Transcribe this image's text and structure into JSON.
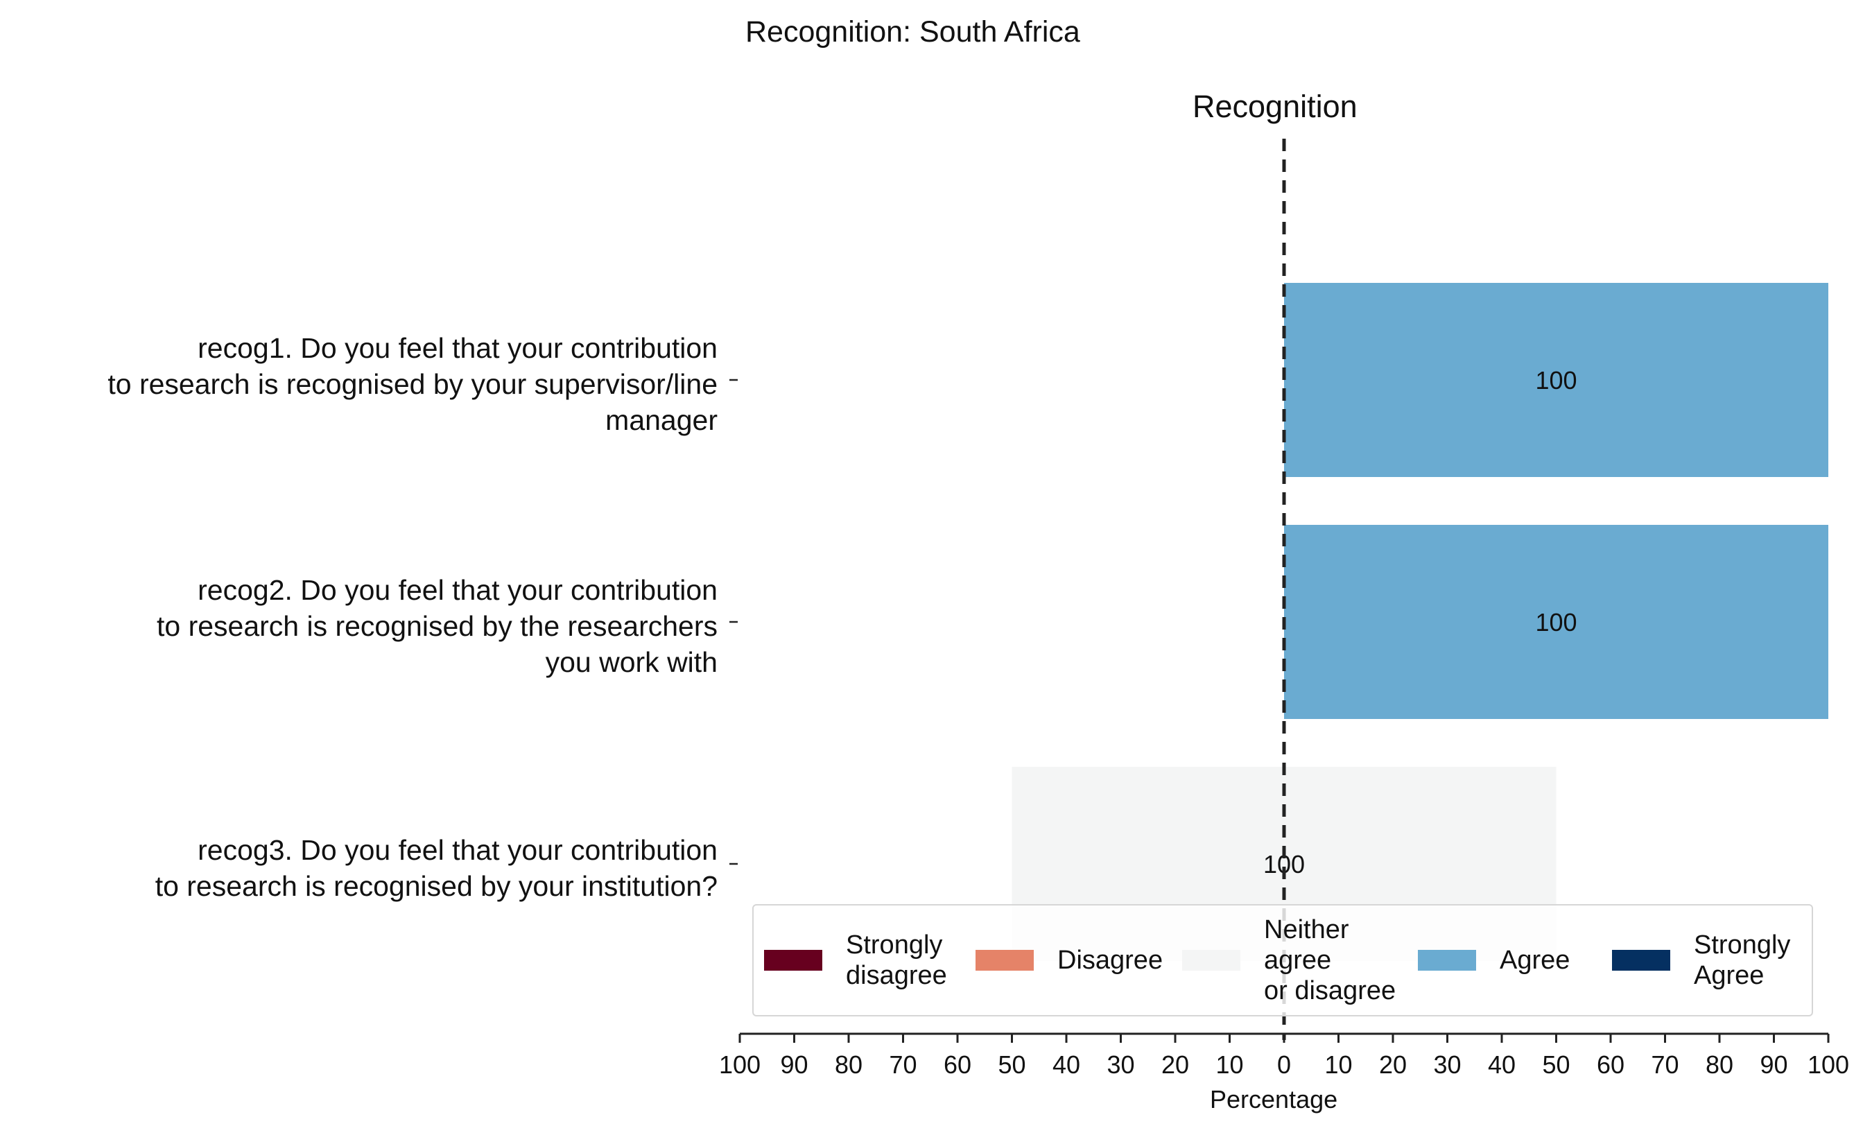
{
  "title": "Recognition: South Africa",
  "subtitle": "Recognition",
  "chart_data": {
    "type": "bar",
    "orientation": "horizontal",
    "stacking": "diverging",
    "title": "Recognition: South Africa",
    "subtitle": "Recognition",
    "xlabel": "Percentage",
    "xlim": [
      -100,
      100
    ],
    "x_ticks": [
      -100,
      -90,
      -80,
      -70,
      -60,
      -50,
      -40,
      -30,
      -20,
      -10,
      0,
      10,
      20,
      30,
      40,
      50,
      60,
      70,
      80,
      90,
      100
    ],
    "x_tick_labels": [
      "100",
      "90",
      "80",
      "70",
      "60",
      "50",
      "40",
      "30",
      "20",
      "10",
      "0",
      "10",
      "20",
      "30",
      "40",
      "50",
      "60",
      "70",
      "80",
      "90",
      "100"
    ],
    "center_line": 0,
    "grid": false,
    "legend_position": "bottom-right",
    "categories": [
      "recog1. Do you feel that your contribution\nto research is recognised by your supervisor/line\nmanager",
      "recog2. Do you feel that your contribution\nto research is recognised by the researchers\nyou work with",
      "recog3. Do you feel that your contribution\nto research is recognised by your institution?"
    ],
    "series": [
      {
        "name": "Strongly\ndisagree",
        "color": "#67001f",
        "values": [
          0,
          0,
          0
        ]
      },
      {
        "name": "Disagree",
        "color": "#e58368",
        "values": [
          0,
          0,
          0
        ]
      },
      {
        "name": "Neither\nagree\nor disagree",
        "color": "#f4f5f5",
        "values": [
          0,
          0,
          100
        ]
      },
      {
        "name": "Agree",
        "color": "#6aabd1",
        "values": [
          100,
          100,
          0
        ]
      },
      {
        "name": "Strongly\nAgree",
        "color": "#053061",
        "values": [
          0,
          0,
          0
        ]
      }
    ],
    "data_labels": [
      "100",
      "100",
      "100"
    ]
  }
}
